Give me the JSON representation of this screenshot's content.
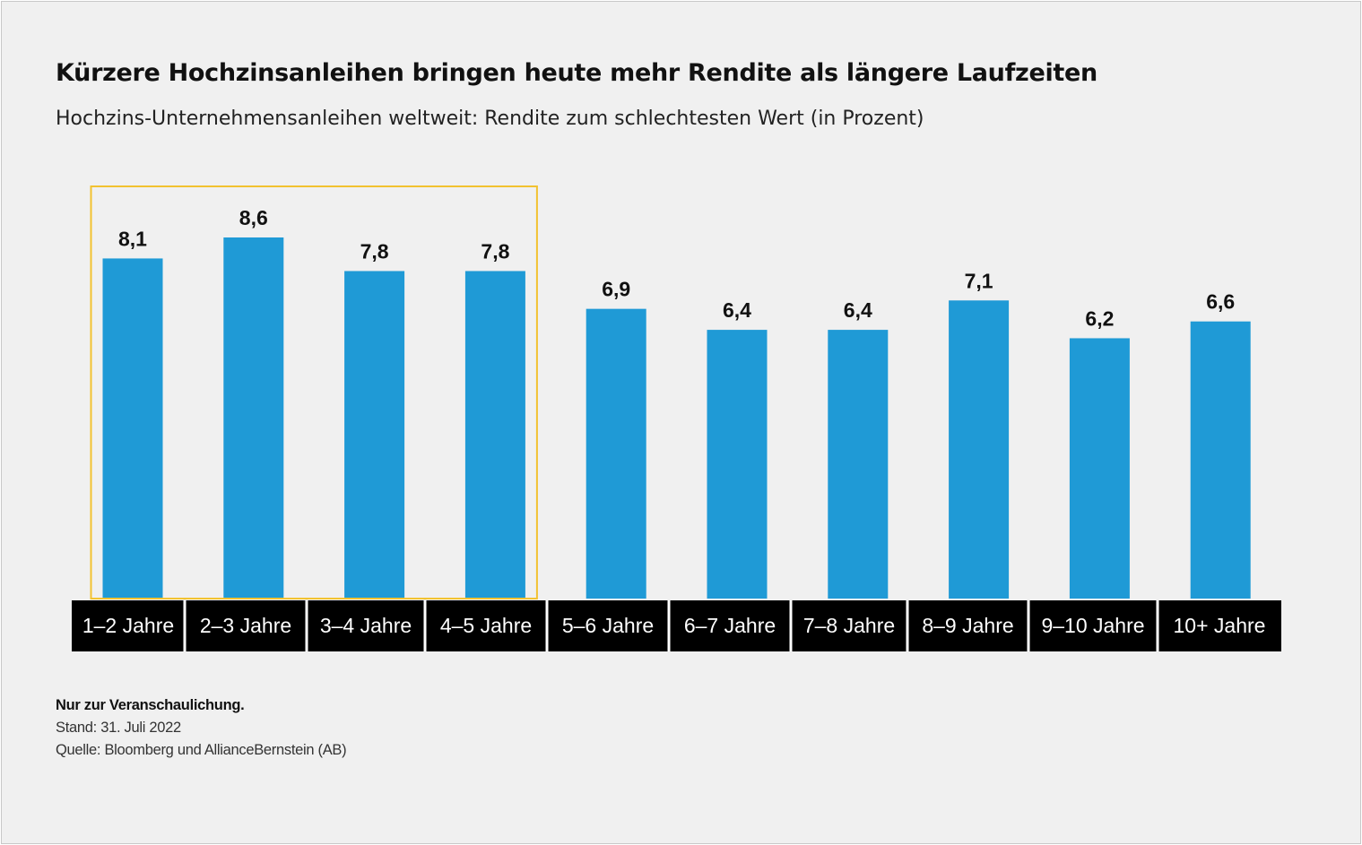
{
  "title": "Kürzere Hochzinsanleihen bringen heute mehr Rendite als längere Laufzeiten",
  "subtitle": "Hochzins-Unternehmensanleihen weltweit: Rendite zum schlechtesten Wert (in Prozent)",
  "footnotes": {
    "illustration": "Nur zur Veranschaulichung.",
    "date": "Stand: 31. Juli 2022",
    "source": "Quelle: Bloomberg und AllianceBernstein (AB)"
  },
  "colors": {
    "bar": "#1f9ad6",
    "highlight_box": "#f2c230",
    "label_bg": "#000000",
    "label_text": "#ffffff",
    "background": "#f0f0f0"
  },
  "chart_data": {
    "type": "bar",
    "categories": [
      "1–2 Jahre",
      "2–3 Jahre",
      "3–4 Jahre",
      "4–5 Jahre",
      "5–6 Jahre",
      "6–7 Jahre",
      "7–8 Jahre",
      "8–9 Jahre",
      "9–10 Jahre",
      "10+ Jahre"
    ],
    "values": [
      8.1,
      8.6,
      7.8,
      7.8,
      6.9,
      6.4,
      6.4,
      7.1,
      6.2,
      6.6
    ],
    "value_labels": [
      "8,1",
      "8,6",
      "7,8",
      "7,8",
      "6,9",
      "6,4",
      "6,4",
      "7,1",
      "6,2",
      "6,6"
    ],
    "ylim": [
      0,
      8.6
    ],
    "highlighted_categories": [
      "1–2 Jahre",
      "2–3 Jahre",
      "3–4 Jahre",
      "4–5 Jahre"
    ],
    "grid": false
  }
}
